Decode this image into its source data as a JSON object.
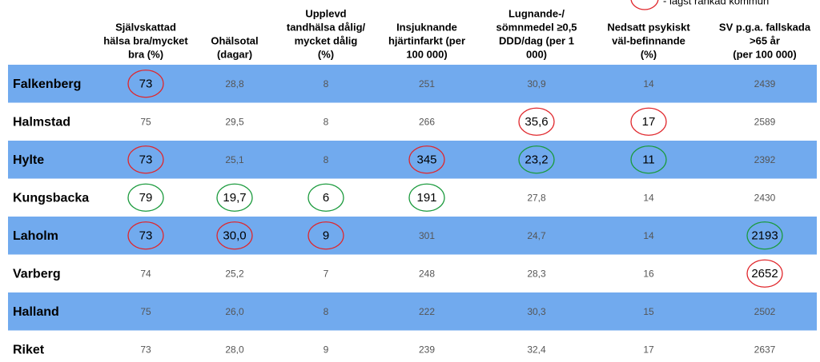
{
  "legend": {
    "text": "- lägst rankad kommun",
    "color": "#e0262b"
  },
  "table": {
    "headers": [
      [
        "Självskattad",
        "hälsa bra/mycket",
        "bra (%)"
      ],
      [
        "Ohälsotal",
        "(dagar)"
      ],
      [
        "Upplevd",
        "tandhälsa dålig/",
        "mycket dålig",
        "(%)"
      ],
      [
        "Insjuknande",
        "hjärtinfarkt (per",
        "100 000)"
      ],
      [
        "Lugnande-/",
        "sömnmedel ≥0,5",
        "DDD/dag (per 1",
        "000)"
      ],
      [
        "Nedsatt psykiskt",
        "väl-befinnande",
        "(%)"
      ],
      [
        "SV p.g.a. fallskada",
        ">65 år",
        "(per 100 000)"
      ]
    ],
    "rows": [
      {
        "name": "Falkenberg",
        "cells": [
          "73",
          "28,8",
          "8",
          "251",
          "30,9",
          "14",
          "2439"
        ]
      },
      {
        "name": "Halmstad",
        "cells": [
          "75",
          "29,5",
          "8",
          "266",
          "35,6",
          "17",
          "2589"
        ]
      },
      {
        "name": "Hylte",
        "cells": [
          "73",
          "25,1",
          "8",
          "345",
          "23,2",
          "11",
          "2392"
        ]
      },
      {
        "name": "Kungsbacka",
        "cells": [
          "79",
          "19,7",
          "6",
          "191",
          "27,8",
          "14",
          "2430"
        ]
      },
      {
        "name": "Laholm",
        "cells": [
          "73",
          "30,0",
          "9",
          "301",
          "24,7",
          "14",
          "2193"
        ]
      },
      {
        "name": "Varberg",
        "cells": [
          "74",
          "25,2",
          "7",
          "248",
          "28,3",
          "16",
          "2652"
        ]
      },
      {
        "name": "Halland",
        "cells": [
          "75",
          "26,0",
          "8",
          "222",
          "30,3",
          "15",
          "2502"
        ]
      },
      {
        "name": "Riket",
        "cells": [
          "73",
          "28,0",
          "9",
          "239",
          "32,4",
          "17",
          "2637"
        ]
      }
    ],
    "stripe_color": "#71aaee",
    "highlights": [
      {
        "row": 0,
        "col": 0,
        "color": "#e0262b"
      },
      {
        "row": 1,
        "col": 4,
        "color": "#e0262b"
      },
      {
        "row": 1,
        "col": 5,
        "color": "#e0262b"
      },
      {
        "row": 2,
        "col": 0,
        "color": "#e0262b"
      },
      {
        "row": 2,
        "col": 3,
        "color": "#e0262b"
      },
      {
        "row": 2,
        "col": 4,
        "color": "#1a9a3c"
      },
      {
        "row": 2,
        "col": 5,
        "color": "#1a9a3c"
      },
      {
        "row": 3,
        "col": 0,
        "color": "#1a9a3c"
      },
      {
        "row": 3,
        "col": 1,
        "color": "#1a9a3c"
      },
      {
        "row": 3,
        "col": 2,
        "color": "#1a9a3c"
      },
      {
        "row": 3,
        "col": 3,
        "color": "#1a9a3c"
      },
      {
        "row": 4,
        "col": 0,
        "color": "#e0262b"
      },
      {
        "row": 4,
        "col": 1,
        "color": "#e0262b"
      },
      {
        "row": 4,
        "col": 2,
        "color": "#e0262b"
      },
      {
        "row": 4,
        "col": 6,
        "color": "#1a9a3c"
      },
      {
        "row": 5,
        "col": 6,
        "color": "#e0262b"
      }
    ]
  }
}
